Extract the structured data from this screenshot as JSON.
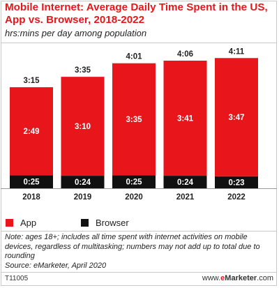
{
  "title": "Mobile Internet: Average Daily Time Spent in the US, App vs. Browser, 2018-2022",
  "subtitle": "hrs:mins per day among population",
  "colors": {
    "app": "#e8161b",
    "browser": "#111111",
    "text": "#222222"
  },
  "chart_data": {
    "type": "bar",
    "stacked": true,
    "categories": [
      "2018",
      "2019",
      "2020",
      "2021",
      "2022"
    ],
    "series": [
      {
        "name": "Browser",
        "values": [
          25,
          24,
          25,
          24,
          23
        ],
        "labels": [
          "0:25",
          "0:24",
          "0:25",
          "0:24",
          "0:23"
        ]
      },
      {
        "name": "App",
        "values": [
          169,
          190,
          215,
          221,
          227
        ],
        "labels": [
          "2:49",
          "3:10",
          "3:35",
          "3:41",
          "3:47"
        ]
      }
    ],
    "totals": [
      195,
      215,
      241,
      246,
      251
    ],
    "total_labels": [
      "3:15",
      "3:35",
      "4:01",
      "4:06",
      "4:11"
    ],
    "unit": "minutes per day",
    "legend_position": "bottom-left"
  },
  "legend": {
    "app_label": "App",
    "browser_label": "Browser"
  },
  "note": "Note: ages 18+; includes all time spent with internet activities on mobile devices, regardless of multitasking; numbers may not add up to total due to rounding",
  "source": "Source: eMarketer, April 2020",
  "chart_code": "T11005",
  "brand": {
    "prefix": "www.",
    "name": "eMarketer",
    "suffix": ".com"
  }
}
